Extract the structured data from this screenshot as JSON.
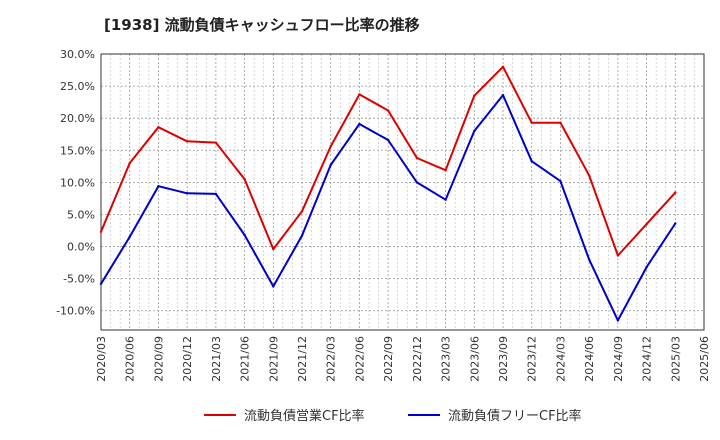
{
  "chart_data": {
    "type": "line",
    "title": "[1938]  流動負債キャッシュフロー比率の推移",
    "xlabel": "",
    "ylabel": "",
    "x_ticks": [
      "2020/03",
      "2020/06",
      "2020/09",
      "2020/12",
      "2021/03",
      "2021/06",
      "2021/09",
      "2021/12",
      "2022/03",
      "2022/06",
      "2022/09",
      "2022/12",
      "2023/03",
      "2023/06",
      "2023/09",
      "2023/12",
      "2024/03",
      "2024/06",
      "2024/09",
      "2024/12",
      "2025/03",
      "2025/06"
    ],
    "y_ticks": [
      "30.0%",
      "25.0%",
      "20.0%",
      "15.0%",
      "10.0%",
      "5.0%",
      "0.0%",
      "-5.0%",
      "-10.0%"
    ],
    "ylim": [
      -13,
      30
    ],
    "grid": true,
    "legend_position": "bottom",
    "x": [
      "2020/03",
      "2020/06",
      "2020/09",
      "2020/12",
      "2021/03",
      "2021/06",
      "2021/09",
      "2021/12",
      "2022/03",
      "2022/06",
      "2022/09",
      "2022/12",
      "2023/03",
      "2023/06",
      "2023/09",
      "2023/12",
      "2024/03",
      "2024/06",
      "2024/09",
      "2024/12",
      "2025/03"
    ],
    "series": [
      {
        "name": "流動負債営業CF比率",
        "color": "#dd0000",
        "values": [
          2.3,
          13.0,
          18.6,
          16.4,
          16.2,
          10.5,
          -0.4,
          5.5,
          15.6,
          23.7,
          21.2,
          13.8,
          11.9,
          23.5,
          28.0,
          19.3,
          19.3,
          11.1,
          -1.4,
          3.5,
          8.4
        ]
      },
      {
        "name": "流動負債フリーCF比率",
        "color": "#0000cc",
        "values": [
          -5.8,
          1.5,
          9.4,
          8.3,
          8.2,
          1.8,
          -6.2,
          1.7,
          12.7,
          19.1,
          16.6,
          10.0,
          7.3,
          18.0,
          23.6,
          13.3,
          10.2,
          -2.0,
          -11.5,
          -3.2,
          3.6
        ]
      }
    ]
  }
}
